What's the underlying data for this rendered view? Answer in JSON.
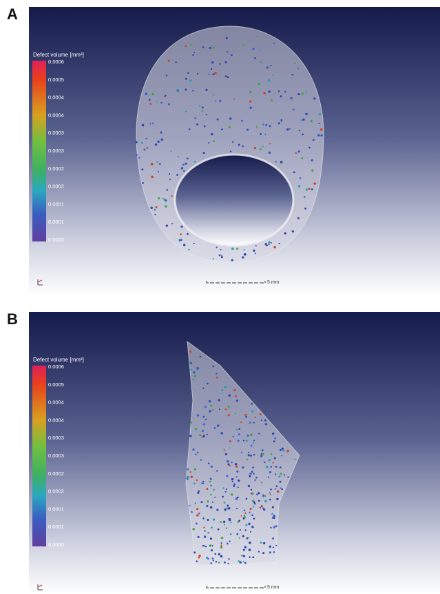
{
  "panels": [
    {
      "label": "A",
      "legend_title": "Defect volume [mm³]",
      "scale_labels": [
        "0.0006",
        "0.0005",
        "0.0004",
        "0.0004",
        "0.0003",
        "0.0003",
        "0.0002",
        "0.0002",
        "0.0001",
        "0.0001",
        "0.0000"
      ],
      "scale_bar_label": "5 mm"
    },
    {
      "label": "B",
      "legend_title": "Defect volume [mm³]",
      "scale_labels": [
        "0.0006",
        "0.0005",
        "0.0004",
        "0.0004",
        "0.0003",
        "0.0003",
        "0.0002",
        "0.0002",
        "0.0001",
        "0.0001",
        "0.0000"
      ],
      "scale_bar_label": "5 mm"
    }
  ]
}
